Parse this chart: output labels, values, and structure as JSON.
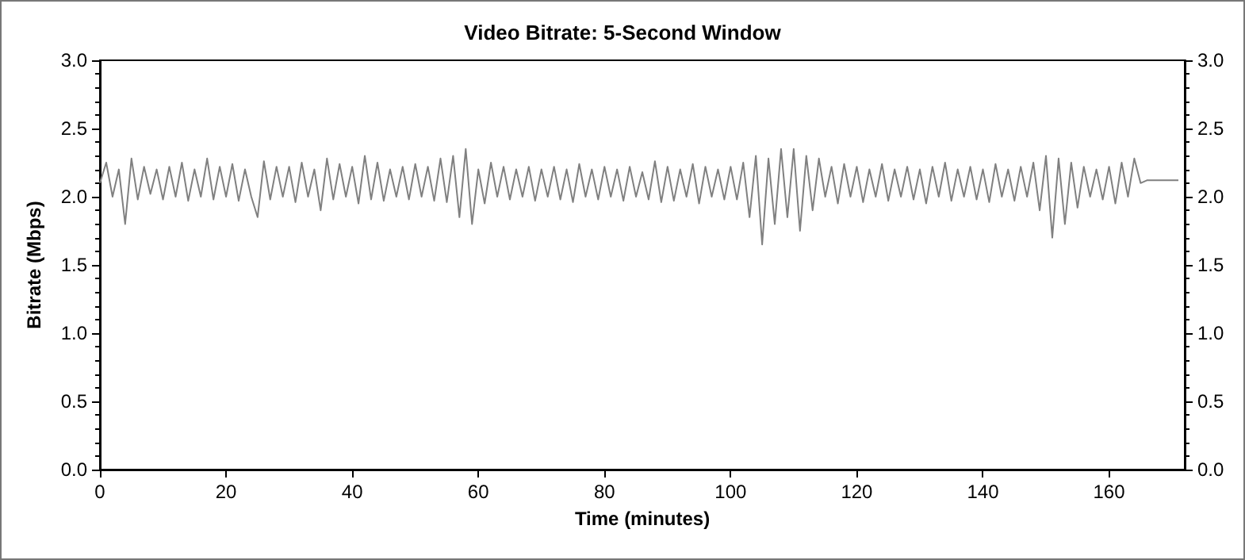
{
  "chart_data": {
    "type": "line",
    "title": "Video Bitrate: 5-Second Window",
    "xlabel": "Time (minutes)",
    "ylabel": "Bitrate (Mbps)",
    "xlim": [
      0,
      172
    ],
    "xticks": [
      0,
      20,
      40,
      60,
      80,
      100,
      120,
      140,
      160
    ],
    "ylim": [
      0,
      3
    ],
    "yticks": [
      {
        "value": 0,
        "label": "0.0"
      },
      {
        "value": 0.5,
        "label": "0.5"
      },
      {
        "value": 1,
        "label": "1.0"
      },
      {
        "value": 1.5,
        "label": "1.5"
      },
      {
        "value": 2,
        "label": "2.0"
      },
      {
        "value": 2.5,
        "label": "2.5"
      },
      {
        "value": 3,
        "label": "3.0"
      }
    ],
    "y2lim": [
      0,
      3
    ],
    "y2ticks": [
      {
        "value": 0,
        "label": "0.0"
      },
      {
        "value": 0.5,
        "label": "0.5"
      },
      {
        "value": 1,
        "label": "1.0"
      },
      {
        "value": 1.5,
        "label": "1.5"
      },
      {
        "value": 2,
        "label": "2.0"
      },
      {
        "value": 2.5,
        "label": "2.5"
      },
      {
        "value": 3,
        "label": "3.0"
      }
    ],
    "grid": false,
    "marker": "none",
    "line_style": "solid",
    "x": [
      0,
      1,
      2,
      3,
      4,
      5,
      6,
      7,
      8,
      9,
      10,
      11,
      12,
      13,
      14,
      15,
      16,
      17,
      18,
      19,
      20,
      21,
      22,
      23,
      24,
      25,
      26,
      27,
      28,
      29,
      30,
      31,
      32,
      33,
      34,
      35,
      36,
      37,
      38,
      39,
      40,
      41,
      42,
      43,
      44,
      45,
      46,
      47,
      48,
      49,
      50,
      51,
      52,
      53,
      54,
      55,
      56,
      57,
      58,
      59,
      60,
      61,
      62,
      63,
      64,
      65,
      66,
      67,
      68,
      69,
      70,
      71,
      72,
      73,
      74,
      75,
      76,
      77,
      78,
      79,
      80,
      81,
      82,
      83,
      84,
      85,
      86,
      87,
      88,
      89,
      90,
      91,
      92,
      93,
      94,
      95,
      96,
      97,
      98,
      99,
      100,
      101,
      102,
      103,
      104,
      105,
      106,
      107,
      108,
      109,
      110,
      111,
      112,
      113,
      114,
      115,
      116,
      117,
      118,
      119,
      120,
      121,
      122,
      123,
      124,
      125,
      126,
      127,
      128,
      129,
      130,
      131,
      132,
      133,
      134,
      135,
      136,
      137,
      138,
      139,
      140,
      141,
      142,
      143,
      144,
      145,
      146,
      147,
      148,
      149,
      150,
      151,
      152,
      153,
      154,
      155,
      156,
      157,
      158,
      159,
      160,
      161,
      162,
      163,
      164,
      165,
      166,
      167,
      168,
      169,
      170,
      171
    ],
    "series": [
      {
        "color": "#808080",
        "values": [
          2.1,
          2.25,
          2.0,
          2.2,
          1.8,
          2.28,
          1.98,
          2.22,
          2.02,
          2.2,
          1.98,
          2.22,
          2.0,
          2.25,
          1.97,
          2.2,
          2.0,
          2.28,
          1.98,
          2.22,
          2.0,
          2.24,
          1.97,
          2.2,
          2.0,
          1.85,
          2.26,
          1.98,
          2.22,
          2.0,
          2.22,
          1.96,
          2.25,
          2.0,
          2.2,
          1.9,
          2.28,
          1.98,
          2.24,
          2.0,
          2.22,
          1.95,
          2.3,
          1.98,
          2.25,
          1.97,
          2.2,
          2.0,
          2.22,
          1.98,
          2.24,
          2.0,
          2.22,
          1.97,
          2.28,
          1.96,
          2.3,
          1.85,
          2.35,
          1.8,
          2.2,
          1.95,
          2.25,
          2.0,
          2.22,
          1.98,
          2.2,
          2.0,
          2.22,
          1.97,
          2.2,
          2.0,
          2.22,
          1.98,
          2.2,
          1.96,
          2.24,
          2.0,
          2.2,
          1.98,
          2.22,
          2.0,
          2.2,
          1.97,
          2.22,
          2.0,
          2.18,
          1.98,
          2.26,
          1.96,
          2.22,
          1.97,
          2.2,
          2.0,
          2.24,
          1.95,
          2.22,
          2.0,
          2.2,
          1.98,
          2.22,
          1.98,
          2.25,
          1.85,
          2.3,
          1.65,
          2.28,
          1.8,
          2.35,
          1.85,
          2.35,
          1.75,
          2.3,
          1.9,
          2.28,
          2.0,
          2.22,
          1.95,
          2.24,
          2.0,
          2.22,
          1.96,
          2.2,
          2.0,
          2.24,
          1.97,
          2.2,
          2.0,
          2.22,
          1.98,
          2.2,
          1.95,
          2.22,
          2.0,
          2.25,
          1.97,
          2.2,
          2.0,
          2.22,
          1.98,
          2.2,
          1.96,
          2.24,
          2.0,
          2.2,
          1.97,
          2.22,
          2.0,
          2.25,
          1.9,
          2.3,
          1.7,
          2.28,
          1.8,
          2.25,
          1.92,
          2.22,
          2.0,
          2.2,
          1.98,
          2.22,
          1.95,
          2.25,
          2.0,
          2.28,
          2.1,
          2.12,
          2.12,
          2.12,
          2.12,
          2.12,
          2.12
        ]
      }
    ]
  }
}
